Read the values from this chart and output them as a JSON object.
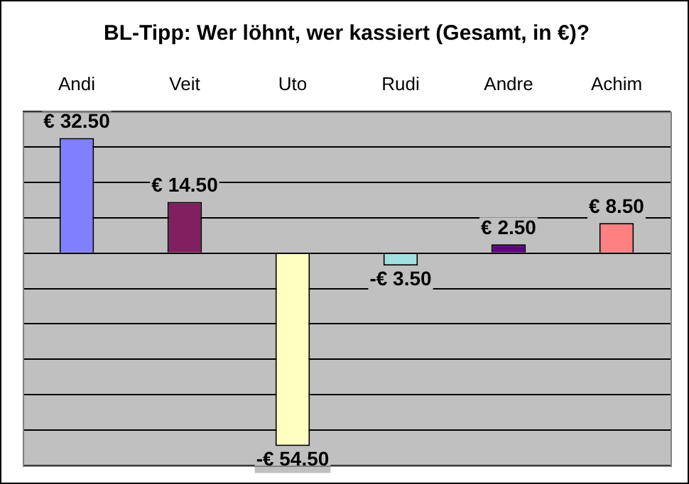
{
  "chart_data": {
    "type": "bar",
    "title": "BL-Tipp: Wer löhnt, wer kassiert (Gesamt, in €)?",
    "categories": [
      "Andi",
      "Veit",
      "Uto",
      "Rudi",
      "Andre",
      "Achim"
    ],
    "values": [
      32.5,
      14.5,
      -54.5,
      -3.5,
      2.5,
      8.5
    ],
    "colors": [
      "#8080ff",
      "#802060",
      "#ffffc0",
      "#a0e0e0",
      "#600080",
      "#ff8080"
    ],
    "value_labels": [
      "€ 32.50",
      "€ 14.50",
      "-€ 54.50",
      "-€ 3.50",
      "€ 2.50",
      "€ 8.50"
    ],
    "ylim": [
      -60,
      40
    ],
    "yticks": [
      {
        "value": -60,
        "label": null
      },
      {
        "value": -50,
        "label": null
      },
      {
        "value": -40,
        "label": null
      },
      {
        "value": -30,
        "label": null
      },
      {
        "value": -20,
        "label": null
      },
      {
        "value": -10,
        "label": null
      },
      {
        "value": 0,
        "label": null
      },
      {
        "value": 10,
        "label": null
      },
      {
        "value": 20,
        "label": null
      },
      {
        "value": 30,
        "label": null
      },
      {
        "value": 40,
        "label": null
      }
    ],
    "grid": "y",
    "tick_labels": "x",
    "legend": false
  }
}
